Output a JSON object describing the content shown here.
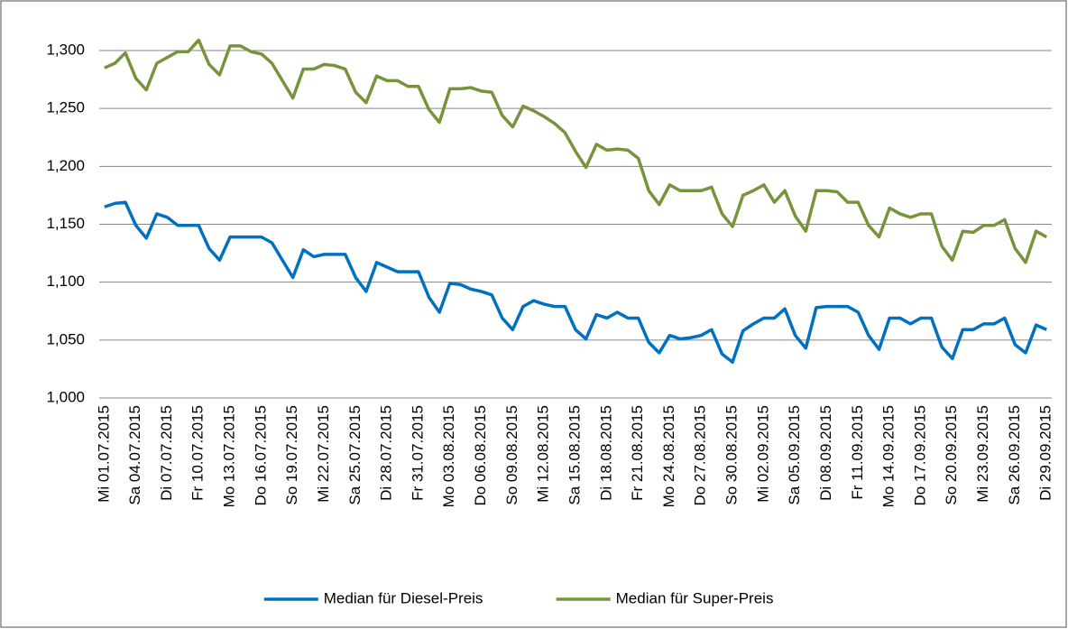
{
  "chart_data": {
    "type": "line",
    "categories": [
      "Mi 01.07.2015",
      null,
      null,
      "Sa 04.07.2015",
      null,
      null,
      "Di 07.07.2015",
      null,
      null,
      "Fr 10.07.2015",
      null,
      null,
      "Mo 13.07.2015",
      null,
      null,
      "Do 16.07.2015",
      null,
      null,
      "So 19.07.2015",
      null,
      null,
      "Mi 22.07.2015",
      null,
      null,
      "Sa 25.07.2015",
      null,
      null,
      "Di 28.07.2015",
      null,
      null,
      "Fr 31.07.2015",
      null,
      null,
      "Mo 03.08.2015",
      null,
      null,
      "Do 06.08.2015",
      null,
      null,
      "So 09.08.2015",
      null,
      null,
      "Mi 12.08.2015",
      null,
      null,
      "Sa 15.08.2015",
      null,
      null,
      "Di 18.08.2015",
      null,
      null,
      "Fr 21.08.2015",
      null,
      null,
      "Mo 24.08.2015",
      null,
      null,
      "Do 27.08.2015",
      null,
      null,
      "So 30.08.2015",
      null,
      null,
      "Mi 02.09.2015",
      null,
      null,
      "Sa 05.09.2015",
      null,
      null,
      "Di 08.09.2015",
      null,
      null,
      "Fr 11.09.2015",
      null,
      null,
      "Mo 14.09.2015",
      null,
      null,
      "Do 17.09.2015",
      null,
      null,
      "So 20.09.2015",
      null,
      null,
      "Mi 23.09.2015",
      null,
      null,
      "Sa 26.09.2015",
      null,
      null,
      "Di 29.09.2015"
    ],
    "series": [
      {
        "name": "Median für Diesel-Preis",
        "color": "#0070c0",
        "values": [
          1.165,
          1.168,
          1.169,
          1.149,
          1.138,
          1.159,
          1.156,
          1.149,
          1.149,
          1.149,
          1.129,
          1.119,
          1.139,
          1.139,
          1.139,
          1.139,
          1.134,
          1.119,
          1.104,
          1.128,
          1.122,
          1.124,
          1.124,
          1.124,
          1.104,
          1.092,
          1.117,
          1.113,
          1.109,
          1.109,
          1.109,
          1.087,
          1.074,
          1.099,
          1.098,
          1.094,
          1.092,
          1.089,
          1.069,
          1.059,
          1.079,
          1.084,
          1.081,
          1.079,
          1.079,
          1.059,
          1.051,
          1.072,
          1.069,
          1.074,
          1.069,
          1.069,
          1.048,
          1.039,
          1.054,
          1.051,
          1.052,
          1.054,
          1.059,
          1.038,
          1.031,
          1.058,
          1.064,
          1.069,
          1.069,
          1.077,
          1.054,
          1.043,
          1.078,
          1.079,
          1.079,
          1.079,
          1.074,
          1.054,
          1.042,
          1.069,
          1.069,
          1.064,
          1.069,
          1.069,
          1.044,
          1.034,
          1.059,
          1.059,
          1.064,
          1.064,
          1.069,
          1.046,
          1.039,
          1.063,
          1.059
        ]
      },
      {
        "name": "Median für Super-Preis",
        "color": "#77933c",
        "values": [
          1.285,
          1.289,
          1.298,
          1.276,
          1.266,
          1.289,
          1.294,
          1.299,
          1.299,
          1.309,
          1.288,
          1.279,
          1.304,
          1.304,
          1.299,
          1.297,
          1.289,
          1.274,
          1.259,
          1.284,
          1.284,
          1.288,
          1.287,
          1.284,
          1.264,
          1.255,
          1.278,
          1.274,
          1.274,
          1.269,
          1.269,
          1.249,
          1.238,
          1.267,
          1.267,
          1.268,
          1.265,
          1.264,
          1.244,
          1.234,
          1.252,
          1.248,
          1.243,
          1.237,
          1.229,
          1.213,
          1.199,
          1.219,
          1.214,
          1.215,
          1.214,
          1.207,
          1.179,
          1.167,
          1.184,
          1.179,
          1.179,
          1.179,
          1.182,
          1.159,
          1.148,
          1.175,
          1.179,
          1.184,
          1.169,
          1.179,
          1.157,
          1.144,
          1.179,
          1.179,
          1.178,
          1.169,
          1.169,
          1.149,
          1.139,
          1.164,
          1.159,
          1.156,
          1.159,
          1.159,
          1.131,
          1.119,
          1.144,
          1.143,
          1.149,
          1.149,
          1.154,
          1.129,
          1.117,
          1.144,
          1.139
        ]
      }
    ],
    "ylim": [
      1.0,
      1.3
    ],
    "yticks": [
      {
        "value": 1.0,
        "label": "1,000"
      },
      {
        "value": 1.05,
        "label": "1,050"
      },
      {
        "value": 1.1,
        "label": "1,100"
      },
      {
        "value": 1.15,
        "label": "1,150"
      },
      {
        "value": 1.2,
        "label": "1,200"
      },
      {
        "value": 1.25,
        "label": "1,250"
      },
      {
        "value": 1.3,
        "label": "1,300"
      }
    ],
    "grid": true,
    "legend": "bottom"
  }
}
